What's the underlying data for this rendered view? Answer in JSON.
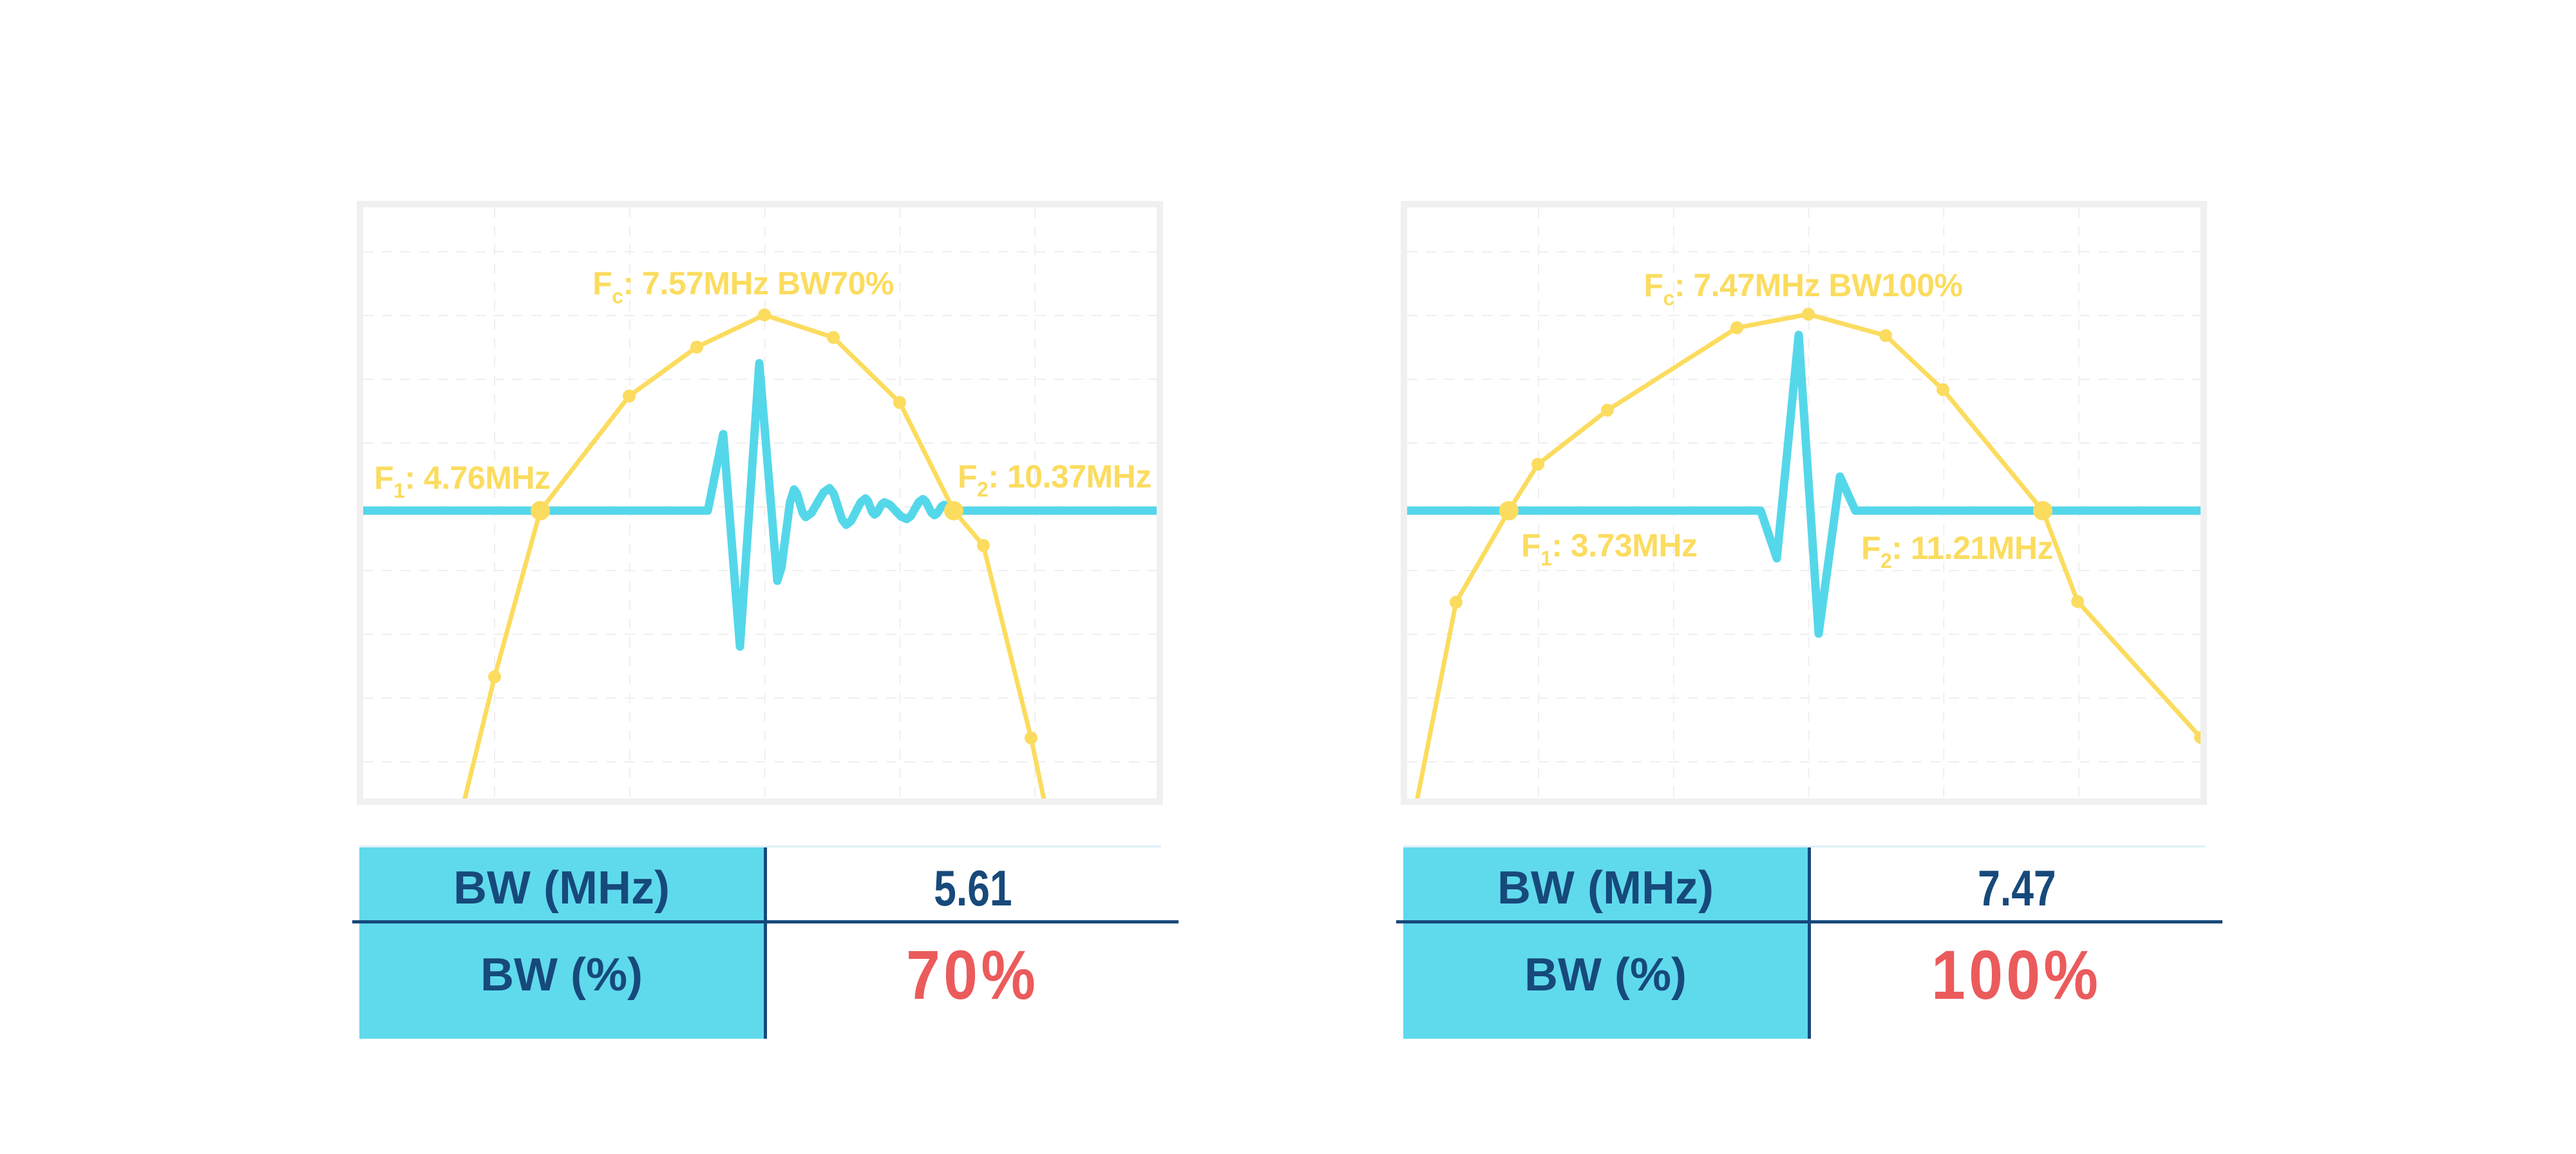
{
  "colors": {
    "background": "#ffffff",
    "yellow": "#fbdc5f",
    "cyan": "#55d7ea",
    "table_cyan": "#5fdaec",
    "navy": "#17497b",
    "red": "#eb5b5c",
    "frame": "#f0f0f0",
    "grid": "#efefef",
    "table_topline": "#dceff7"
  },
  "chart_data": [
    {
      "type": "line",
      "id": "bw70",
      "title": "Fc: 7.57MHz BW70%",
      "axes": {
        "x_label": "",
        "y_label": "",
        "tick_labels": false,
        "note": "axes are unlabeled; point coordinates are fractions of the plot area, y measured downward from the top"
      },
      "grid": {
        "vertical_x": [
          0.1656,
          0.3359,
          0.5061,
          0.6764,
          0.8466
        ],
        "horizontal_y": [
          0.0752,
          0.183,
          0.2908,
          0.3987,
          0.5065,
          0.6144,
          0.7222,
          0.8301,
          0.9379
        ]
      },
      "baseline_y": 0.5131,
      "annotations": [
        {
          "id": "fc",
          "prefix": "F",
          "sub": "c",
          "rest": ": 7.57MHz BW70%",
          "anchor": "middle",
          "x": 0.4789,
          "y": 0.1471
        },
        {
          "id": "f1",
          "prefix": "F",
          "sub": "1",
          "rest": ": 4.76MHz",
          "anchor": "start",
          "x": 0.0138,
          "y": 0.476
        },
        {
          "id": "f2",
          "prefix": "F",
          "sub": "2",
          "rest": ": 10.37MHz",
          "anchor": "start",
          "x": 0.7492,
          "y": 0.4739
        }
      ],
      "series": [
        {
          "name": "pulse",
          "color": "cyan",
          "smooth_from": 5,
          "smooth_to": 17,
          "points": [
            [
              0.0,
              0.5131
            ],
            [
              0.4343,
              0.5131
            ],
            [
              0.4537,
              0.3834
            ],
            [
              0.4748,
              0.743
            ],
            [
              0.4992,
              0.2636
            ],
            [
              0.5219,
              0.6318
            ],
            [
              0.543,
              0.4771
            ],
            [
              0.5576,
              0.524
            ],
            [
              0.5876,
              0.4749
            ],
            [
              0.6088,
              0.537
            ],
            [
              0.6331,
              0.4924
            ],
            [
              0.6445,
              0.5196
            ],
            [
              0.6567,
              0.4989
            ],
            [
              0.6851,
              0.5272
            ],
            [
              0.7054,
              0.4935
            ],
            [
              0.72,
              0.5207
            ],
            [
              0.7321,
              0.5033
            ],
            [
              0.7451,
              0.5131
            ],
            [
              1.0,
              0.5131
            ]
          ]
        },
        {
          "name": "spectrum",
          "color": "yellow",
          "points": [
            [
              0.1201,
              1.0436
            ],
            [
              0.1656,
              0.7941
            ],
            [
              0.2232,
              0.5131
            ],
            [
              0.3352,
              0.3192
            ],
            [
              0.4204,
              0.2364
            ],
            [
              0.5057,
              0.1819
            ],
            [
              0.5925,
              0.22
            ],
            [
              0.6761,
              0.3301
            ],
            [
              0.7443,
              0.5131
            ],
            [
              0.7816,
              0.5719
            ],
            [
              0.8417,
              0.8976
            ],
            [
              0.8645,
              1.0436
            ]
          ],
          "markers_small": [
            [
              0.1656,
              0.7941
            ],
            [
              0.3352,
              0.3192
            ],
            [
              0.4204,
              0.2364
            ],
            [
              0.5057,
              0.1819
            ],
            [
              0.5925,
              0.22
            ],
            [
              0.6761,
              0.3301
            ],
            [
              0.7816,
              0.5719
            ],
            [
              0.8417,
              0.8976
            ]
          ],
          "markers_large": [
            [
              0.2232,
              0.5131
            ],
            [
              0.7443,
              0.5131
            ]
          ]
        }
      ]
    },
    {
      "type": "line",
      "id": "bw100",
      "title": "Fc: 7.47MHz BW100%",
      "axes": {
        "x_label": "",
        "y_label": "",
        "tick_labels": false,
        "note": "axes are unlabeled; point coordinates are fractions of the plot area, y measured downward from the top"
      },
      "grid": {
        "vertical_x": [
          0.1656,
          0.3359,
          0.5061,
          0.6764,
          0.8466
        ],
        "horizontal_y": [
          0.0752,
          0.183,
          0.2908,
          0.3987,
          0.5065,
          0.6144,
          0.7222,
          0.8301,
          0.9379
        ]
      },
      "baseline_y": 0.5131,
      "annotations": [
        {
          "id": "fc",
          "prefix": "F",
          "sub": "c",
          "rest": ": 7.47MHz BW100%",
          "anchor": "middle",
          "x": 0.4992,
          "y": 0.1503
        },
        {
          "id": "f1",
          "prefix": "F",
          "sub": "1",
          "rest": ": 3.73MHz",
          "anchor": "start",
          "x": 0.1437,
          "y": 0.5904
        },
        {
          "id": "f2",
          "prefix": "F",
          "sub": "2",
          "rest": ": 11.21MHz",
          "anchor": "start",
          "x": 0.5722,
          "y": 0.5948
        }
      ],
      "series": [
        {
          "name": "pulse",
          "color": "cyan",
          "points": [
            [
              0.0,
              0.5131
            ],
            [
              0.4456,
              0.5131
            ],
            [
              0.4659,
              0.5937
            ],
            [
              0.4935,
              0.2157
            ],
            [
              0.5187,
              0.7211
            ],
            [
              0.5455,
              0.4553
            ],
            [
              0.5649,
              0.5131
            ],
            [
              1.0,
              0.5131
            ]
          ]
        },
        {
          "name": "spectrum",
          "color": "yellow",
          "points": [
            [
              0.0065,
              1.0436
            ],
            [
              0.0617,
              0.6678
            ],
            [
              0.1282,
              0.5131
            ],
            [
              0.1648,
              0.4346
            ],
            [
              0.2524,
              0.3431
            ],
            [
              0.4156,
              0.2037
            ],
            [
              0.5057,
              0.1808
            ],
            [
              0.6031,
              0.2168
            ],
            [
              0.6753,
              0.3083
            ],
            [
              0.8011,
              0.5131
            ],
            [
              0.845,
              0.6667
            ],
            [
              1.0,
              0.8965
            ]
          ],
          "markers_small": [
            [
              0.0617,
              0.6678
            ],
            [
              0.1648,
              0.4346
            ],
            [
              0.2524,
              0.3431
            ],
            [
              0.4156,
              0.2037
            ],
            [
              0.5057,
              0.1808
            ],
            [
              0.6031,
              0.2168
            ],
            [
              0.6753,
              0.3083
            ],
            [
              0.845,
              0.6667
            ],
            [
              1.0,
              0.8965
            ]
          ],
          "markers_large": [
            [
              0.1282,
              0.5131
            ],
            [
              0.8011,
              0.5131
            ]
          ]
        }
      ]
    }
  ],
  "tables": [
    {
      "rows": [
        {
          "label": "BW (MHz)",
          "value": "5.61"
        },
        {
          "label": "BW (%)",
          "value": "70%"
        }
      ]
    },
    {
      "rows": [
        {
          "label": "BW (MHz)",
          "value": "7.47"
        },
        {
          "label": "BW (%)",
          "value": "100%"
        }
      ]
    }
  ]
}
